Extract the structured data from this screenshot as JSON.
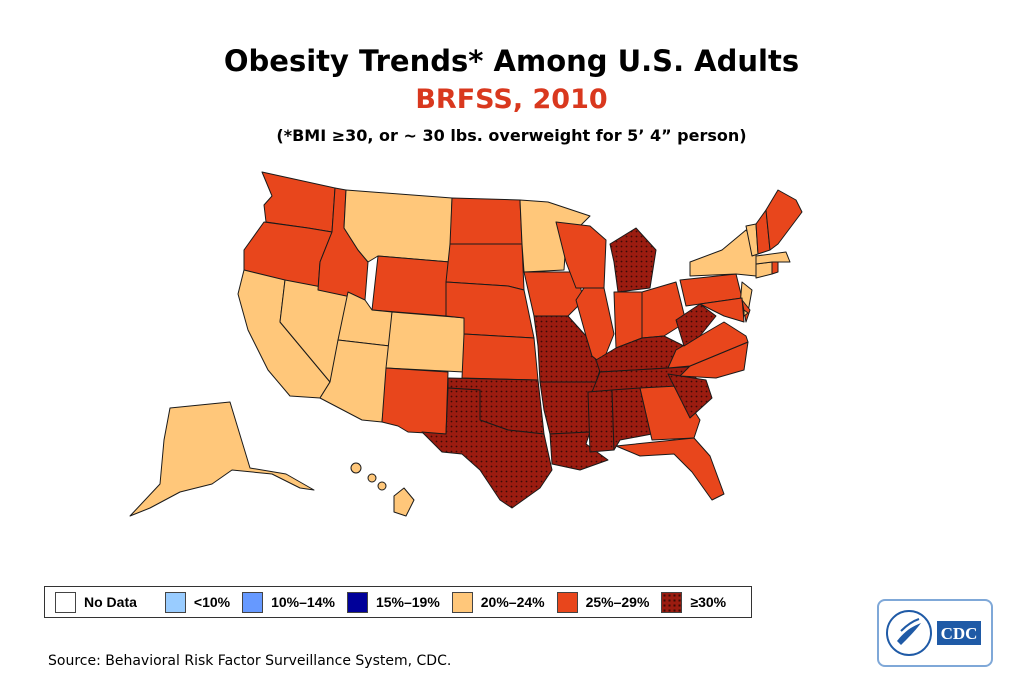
{
  "title": "Obesity Trends* Among U.S. Adults",
  "subtitle": "BRFSS, 2010",
  "subtitle_color": "#d9381e",
  "note": "(*BMI ≥30, or ~ 30 lbs. overweight for 5’ 4” person)",
  "legend": [
    {
      "label": "No Data",
      "color": "#ffffff",
      "pattern": false
    },
    {
      "label": "<10%",
      "color": "#99ccff",
      "pattern": false
    },
    {
      "label": "10%–14%",
      "color": "#6699ff",
      "pattern": false
    },
    {
      "label": "15%–19%",
      "color": "#000099",
      "pattern": false
    },
    {
      "label": "20%–24%",
      "color": "#ffc77a",
      "pattern": false
    },
    {
      "label": "25%–29%",
      "color": "#e8461c",
      "pattern": false
    },
    {
      "label": "≥30%",
      "color": "#9b1c10",
      "pattern": true
    }
  ],
  "state_categories": {
    "20%–24%": [
      "CA",
      "NV",
      "UT",
      "AZ",
      "CO",
      "MT",
      "MN",
      "NY",
      "VT",
      "NJ",
      "CT",
      "MA",
      "AK",
      "HI",
      "DC"
    ],
    "25%–29%": [
      "WA",
      "OR",
      "ID",
      "WY",
      "NM",
      "ND",
      "SD",
      "NE",
      "KS",
      "IA",
      "WI",
      "IL",
      "IN",
      "OH",
      "PA",
      "VA",
      "NC",
      "GA",
      "FL",
      "ME",
      "NH",
      "RI",
      "DE",
      "MD"
    ],
    "≥30%": [
      "TX",
      "OK",
      "MO",
      "AR",
      "LA",
      "MS",
      "AL",
      "TN",
      "KY",
      "MI",
      "WV",
      "SC"
    ]
  },
  "source": "Source: Behavioral Risk Factor Surveillance System, CDC.",
  "logo": {
    "text": "CDC",
    "color": "#1f5aa6"
  }
}
